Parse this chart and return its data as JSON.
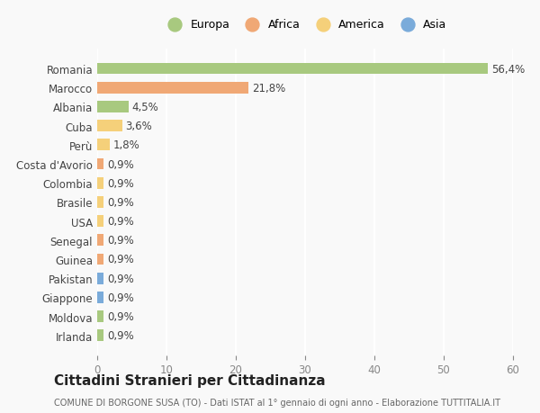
{
  "countries": [
    "Romania",
    "Marocco",
    "Albania",
    "Cuba",
    "Perù",
    "Costa d'Avorio",
    "Colombia",
    "Brasile",
    "USA",
    "Senegal",
    "Guinea",
    "Pakistan",
    "Giappone",
    "Moldova",
    "Irlanda"
  ],
  "values": [
    56.4,
    21.8,
    4.5,
    3.6,
    1.8,
    0.9,
    0.9,
    0.9,
    0.9,
    0.9,
    0.9,
    0.9,
    0.9,
    0.9,
    0.9
  ],
  "labels": [
    "56,4%",
    "21,8%",
    "4,5%",
    "3,6%",
    "1,8%",
    "0,9%",
    "0,9%",
    "0,9%",
    "0,9%",
    "0,9%",
    "0,9%",
    "0,9%",
    "0,9%",
    "0,9%",
    "0,9%"
  ],
  "continents": [
    "Europa",
    "Africa",
    "Europa",
    "America",
    "America",
    "Africa",
    "America",
    "America",
    "America",
    "Africa",
    "Africa",
    "Asia",
    "Asia",
    "Europa",
    "Europa"
  ],
  "colors": {
    "Europa": "#a8c97f",
    "Africa": "#f0a875",
    "America": "#f5d07a",
    "Asia": "#7aabda"
  },
  "legend_order": [
    "Europa",
    "Africa",
    "America",
    "Asia"
  ],
  "title": "Cittadini Stranieri per Cittadinanza",
  "subtitle": "COMUNE DI BORGONE SUSA (TO) - Dati ISTAT al 1° gennaio di ogni anno - Elaborazione TUTTITALIA.IT",
  "xlim": [
    0,
    60
  ],
  "xticks": [
    0,
    10,
    20,
    30,
    40,
    50,
    60
  ],
  "background_color": "#f9f9f9",
  "grid_color": "#ffffff",
  "bar_height": 0.6
}
